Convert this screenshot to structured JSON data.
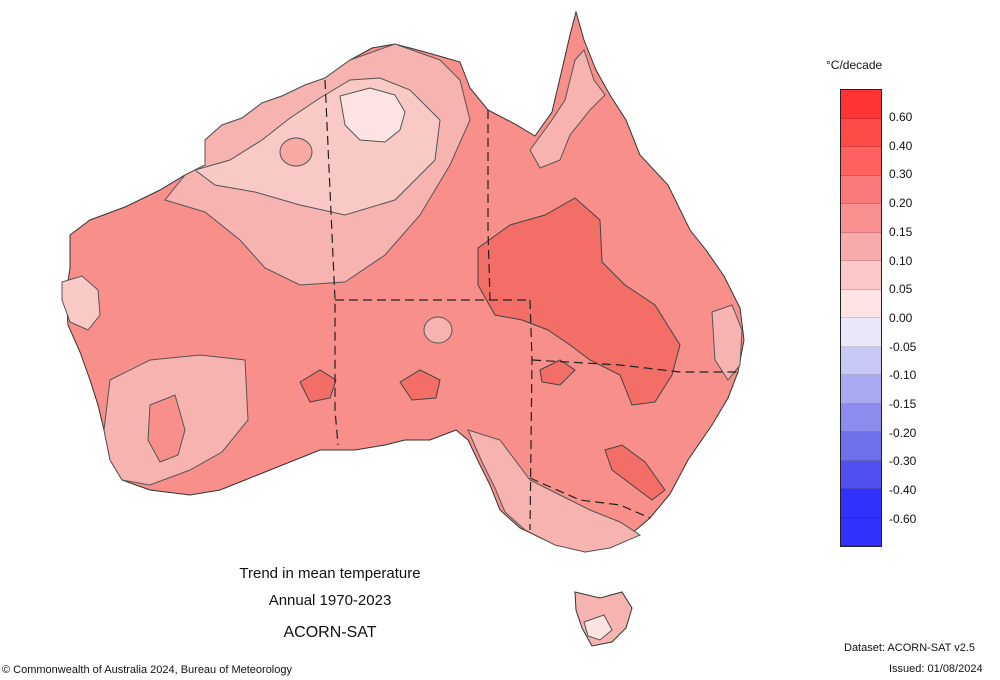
{
  "map": {
    "title_line1": "Trend in mean temperature",
    "title_line2": "Annual 1970-2023",
    "dataset_name": "ACORN-SAT"
  },
  "legend": {
    "unit": "°C/decade",
    "labels": [
      "0.60",
      "0.40",
      "0.30",
      "0.20",
      "0.15",
      "0.10",
      "0.05",
      "0.00",
      "-0.05",
      "-0.10",
      "-0.15",
      "-0.20",
      "-0.30",
      "-0.40",
      "-0.60"
    ],
    "colors": [
      "#ff3333",
      "#ff4a4a",
      "#ff6060",
      "#f97878",
      "#f99090",
      "#f9aaaa",
      "#fcc7c7",
      "#fde3e3",
      "#e8e8fa",
      "#c8c8f6",
      "#aaaaf2",
      "#8c8cee",
      "#7070ea",
      "#5050f0",
      "#3030ff",
      "#3030ff"
    ]
  },
  "footer": {
    "copyright": "© Commonwealth of Australia 2024, Bureau of Meteorology",
    "dataset": "Dataset: ACORN-SAT v2.5",
    "issued": "Issued: 01/08/2024"
  }
}
